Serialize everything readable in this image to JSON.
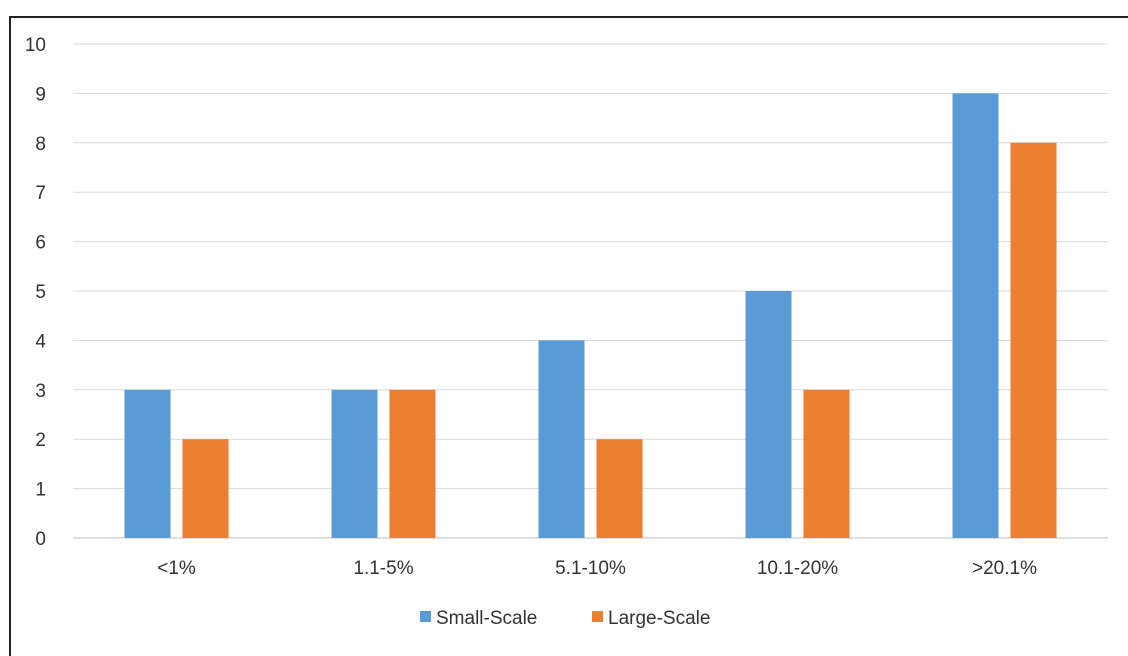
{
  "chart_data": {
    "type": "bar",
    "categories": [
      "<1%",
      "1.1-5%",
      "5.1-10%",
      "10.1-20%",
      ">20.1%"
    ],
    "series": [
      {
        "name": "Small-Scale",
        "color": "#5b9bd5",
        "values": [
          3,
          3,
          4,
          5,
          9
        ]
      },
      {
        "name": "Large-Scale",
        "color": "#ed7d31",
        "values": [
          2,
          3,
          2,
          3,
          8
        ]
      }
    ],
    "yticks": [
      "0",
      "1",
      "2",
      "3",
      "4",
      "5",
      "6",
      "7",
      "8",
      "9",
      "10"
    ],
    "ylim": [
      0,
      10
    ],
    "grid": true,
    "legend": "bottom"
  }
}
